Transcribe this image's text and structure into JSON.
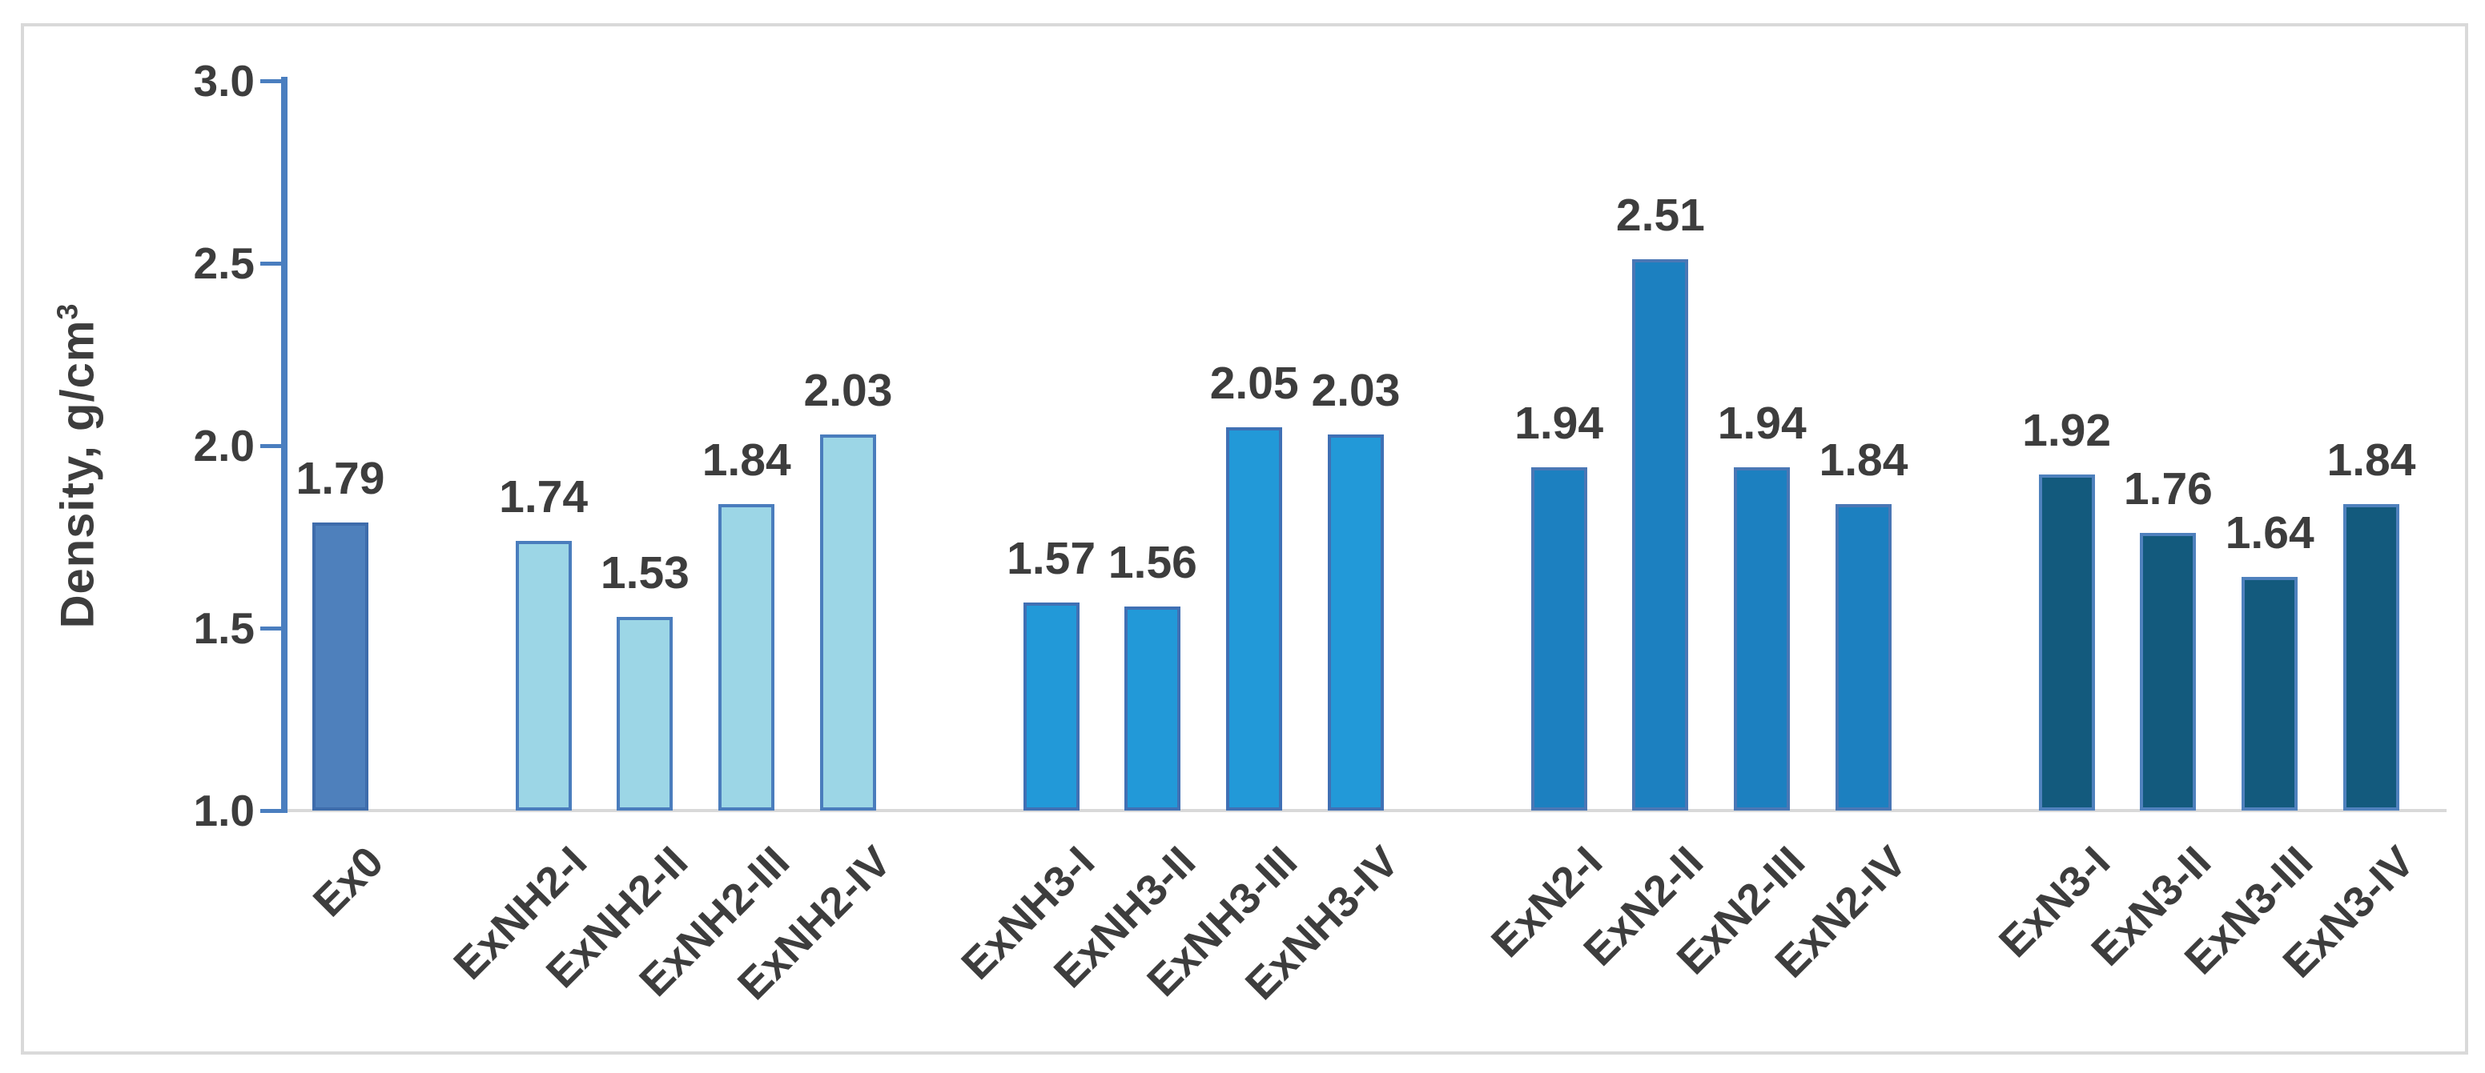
{
  "chart_data": {
    "type": "bar",
    "title": "",
    "xlabel": "",
    "ylabel": "Density, g/cm³",
    "ylabel_rich": {
      "main": "Density, g/cm",
      "sup": "3"
    },
    "ylim": [
      1.0,
      3.0
    ],
    "yticks": [
      "1.0",
      "1.5",
      "2.0",
      "2.5",
      "3.0"
    ],
    "grid": false,
    "legend_position": "none",
    "value_labels_shown": true,
    "groups": [
      {
        "name": "Ex0",
        "fill": "#4e80bc",
        "border": "#3e6cab",
        "bars": [
          {
            "category": "Ex0",
            "value": 1.79,
            "label": "1.79"
          }
        ]
      },
      {
        "name": "ExNH2",
        "fill": "#9cd6e6",
        "border": "#4a7dbd",
        "bars": [
          {
            "category": "ExNH2-I",
            "value": 1.74,
            "label": "1.74"
          },
          {
            "category": "ExNH2-II",
            "value": 1.53,
            "label": "1.53"
          },
          {
            "category": "ExNH2-III",
            "value": 1.84,
            "label": "1.84"
          },
          {
            "category": "ExNH2-IV",
            "value": 2.03,
            "label": "2.03"
          }
        ]
      },
      {
        "name": "ExNH3",
        "fill": "#2299d8",
        "border": "#4070b4",
        "bars": [
          {
            "category": "ExNH3-I",
            "value": 1.57,
            "label": "1.57"
          },
          {
            "category": "ExNH3-II",
            "value": 1.56,
            "label": "1.56"
          },
          {
            "category": "ExNH3-III",
            "value": 2.05,
            "label": "2.05"
          },
          {
            "category": "ExNH3-IV",
            "value": 2.03,
            "label": "2.03"
          }
        ]
      },
      {
        "name": "ExN2",
        "fill": "#1c80c0",
        "border": "#4a77b5",
        "bars": [
          {
            "category": "ExN2-I",
            "value": 1.94,
            "label": "1.94"
          },
          {
            "category": "ExN2-II",
            "value": 2.51,
            "label": "2.51"
          },
          {
            "category": "ExN2-III",
            "value": 1.94,
            "label": "1.94"
          },
          {
            "category": "ExN2-IV",
            "value": 1.84,
            "label": "1.84"
          }
        ]
      },
      {
        "name": "ExN3",
        "fill": "#135a7d",
        "border": "#4f81bd",
        "bars": [
          {
            "category": "ExN3-I",
            "value": 1.92,
            "label": "1.92"
          },
          {
            "category": "ExN3-II",
            "value": 1.76,
            "label": "1.76"
          },
          {
            "category": "ExN3-III",
            "value": 1.64,
            "label": "1.64"
          },
          {
            "category": "ExN3-IV",
            "value": 1.84,
            "label": "1.84"
          }
        ]
      }
    ],
    "colors": {
      "axis_line": "#4a7ebf",
      "baseline": "#d9d9d9",
      "frame_border": "#d9d9d9",
      "text": "#3d3d3d",
      "background": "#ffffff"
    }
  }
}
